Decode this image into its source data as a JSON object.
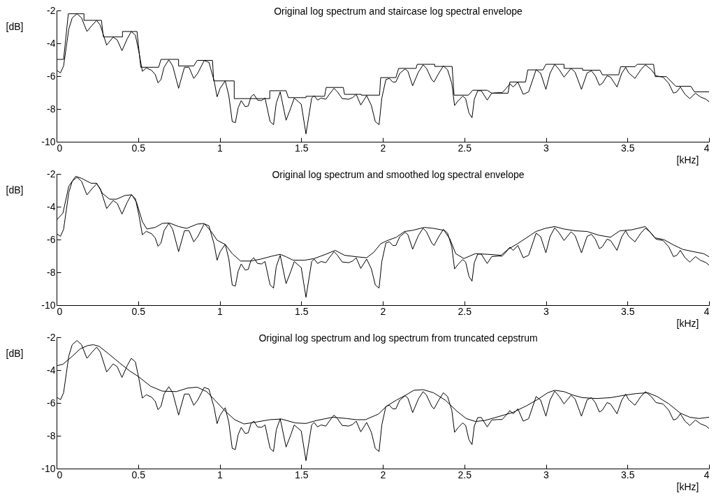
{
  "chart_data": [
    {
      "type": "line",
      "title": "Original log spectrum and staircase log spectral envelope",
      "xlabel": "[kHz]",
      "ylabel": "[dB]",
      "xlim": [
        0,
        4
      ],
      "xticks": [
        0,
        0.5,
        1,
        1.5,
        2,
        2.5,
        3,
        3.5,
        4
      ],
      "ylim": [
        -10,
        -2
      ],
      "yticks": [
        -10,
        -8,
        -6,
        -4,
        -2
      ],
      "series": [
        {
          "type": "line",
          "color": "#000000",
          "x": [
            0,
            0.024,
            0.043,
            0.075,
            0.096,
            0.125,
            0.153,
            0.186,
            0.218,
            0.246,
            0.268,
            0.307,
            0.347,
            0.372,
            0.401,
            0.433,
            0.458,
            0.483,
            0.504,
            0.526,
            0.55,
            0.583,
            0.605,
            0.622,
            0.64,
            0.659,
            0.688,
            0.712,
            0.748,
            0.784,
            0.812,
            0.841,
            0.865,
            0.905,
            0.934,
            0.966,
            0.984,
            1.003,
            1.034,
            1.056,
            1.077,
            1.096,
            1.113,
            1.132,
            1.156,
            1.175,
            1.192,
            1.209,
            1.232,
            1.256,
            1.278,
            1.309,
            1.33,
            1.347,
            1.371,
            1.407,
            1.436,
            1.457,
            1.5,
            1.529,
            1.564,
            1.579,
            1.6,
            1.622,
            1.651,
            1.672,
            1.701,
            1.722,
            1.751,
            1.791,
            1.815,
            1.837,
            1.865,
            1.901,
            1.93,
            1.954,
            1.977,
            1.994,
            2.019,
            2.04,
            2.061,
            2.08,
            2.104,
            2.137,
            2.154,
            2.183,
            2.218,
            2.247,
            2.268,
            2.3,
            2.314,
            2.343,
            2.371,
            2.397,
            2.423,
            2.44,
            2.461,
            2.49,
            2.508,
            2.528,
            2.547,
            2.561,
            2.582,
            2.604,
            2.64,
            2.668,
            2.704,
            2.732,
            2.757,
            2.779,
            2.8,
            2.828,
            2.861,
            2.894,
            2.94,
            2.968,
            3,
            3.025,
            3.054,
            3.082,
            3.111,
            3.154,
            3.179,
            3.218,
            3.253,
            3.279,
            3.303,
            3.328,
            3.346,
            3.375,
            3.396,
            3.436,
            3.465,
            3.489,
            3.507,
            3.546,
            3.582,
            3.61,
            3.646,
            3.675,
            3.718,
            3.753,
            3.782,
            3.803,
            3.824,
            3.853,
            3.882,
            3.917,
            3.946,
            3.982,
            4
          ],
          "values": [
            -5.65,
            -5.8,
            -5.38,
            -3.13,
            -2.45,
            -2.2,
            -2.45,
            -3.28,
            -2.9,
            -2.6,
            -2.9,
            -4.11,
            -3.62,
            -3.8,
            -4.45,
            -3.73,
            -3.28,
            -3.5,
            -4.48,
            -5.71,
            -5.5,
            -5.65,
            -5.91,
            -6.41,
            -6.21,
            -5.46,
            -5.01,
            -5.38,
            -6.74,
            -5.46,
            -5.46,
            -6.14,
            -5.83,
            -5.05,
            -5.16,
            -6.29,
            -7.26,
            -6.74,
            -6.29,
            -7.19,
            -8.77,
            -8.84,
            -7.94,
            -7.49,
            -7.86,
            -7.82,
            -7.26,
            -7.11,
            -7.46,
            -7.49,
            -7.34,
            -8.77,
            -8.96,
            -7.64,
            -6.96,
            -8.69,
            -7.94,
            -7.34,
            -7.71,
            -9.52,
            -7.34,
            -7.19,
            -7.46,
            -7.34,
            -7.41,
            -7.11,
            -6.74,
            -6.96,
            -7.37,
            -7.41,
            -7.31,
            -7.11,
            -7.76,
            -7.19,
            -7.79,
            -8.77,
            -8.96,
            -7.34,
            -6.21,
            -6.14,
            -6.36,
            -6.36,
            -5.83,
            -5.56,
            -5.71,
            -6.59,
            -5.76,
            -5.31,
            -5.53,
            -6.21,
            -6.36,
            -5.83,
            -5.38,
            -5.61,
            -6.44,
            -7.79,
            -7.52,
            -7.22,
            -7.37,
            -8.24,
            -8.54,
            -7.41,
            -6.89,
            -6.89,
            -7.46,
            -7.04,
            -7.01,
            -7.01,
            -6.74,
            -6.47,
            -6.66,
            -6.36,
            -7.11,
            -6.96,
            -5.61,
            -5.83,
            -6.81,
            -5.83,
            -5.28,
            -5.61,
            -6.06,
            -5.53,
            -5.76,
            -6.81,
            -5.8,
            -5.68,
            -5.98,
            -6.56,
            -6.44,
            -5.98,
            -6.06,
            -6.66,
            -5.83,
            -5.46,
            -5.8,
            -6.14,
            -5.61,
            -5.31,
            -5.61,
            -5.98,
            -6.06,
            -6.44,
            -7.04,
            -6.96,
            -6.66,
            -7.11,
            -7.37,
            -7.04,
            -7.26,
            -7.41,
            -7.56
          ]
        },
        {
          "type": "line",
          "color": "#000000",
          "x": [
            0,
            0.043,
            0.072,
            0.168,
            0.168,
            0.275,
            0.287,
            0.404,
            0.404,
            0.493,
            0.516,
            0.626,
            0.64,
            0.748,
            0.748,
            0.841,
            0.862,
            0.956,
            0.963,
            1.089,
            1.089,
            1.307,
            1.307,
            1.407,
            1.421,
            1.529,
            1.529,
            1.643,
            1.653,
            1.758,
            1.765,
            1.868,
            1.868,
            1.98,
            1.987,
            2.08,
            2.097,
            2.204,
            2.211,
            2.318,
            2.318,
            2.425,
            2.437,
            2.525,
            2.551,
            2.64,
            2.668,
            2.768,
            2.779,
            2.875,
            2.889,
            2.982,
            3,
            3.111,
            3.111,
            3.225,
            3.225,
            3.332,
            3.346,
            3.446,
            3.458,
            3.546,
            3.56,
            3.66,
            3.67,
            3.739,
            3.796,
            3.889,
            3.91,
            4
          ],
          "values": [
            -4.98,
            -4.98,
            -2.2,
            -2.2,
            -2.6,
            -2.6,
            -3.61,
            -3.61,
            -3.28,
            -3.28,
            -5.46,
            -5.46,
            -4.98,
            -4.98,
            -5.38,
            -5.38,
            -5.04,
            -5.04,
            -6.29,
            -6.29,
            -7.37,
            -7.37,
            -6.89,
            -6.89,
            -7.31,
            -7.31,
            -7.23,
            -7.23,
            -6.69,
            -6.69,
            -7.11,
            -7.11,
            -7.16,
            -7.16,
            -6.09,
            -6.09,
            -5.53,
            -5.53,
            -5.28,
            -5.28,
            -5.41,
            -5.41,
            -7.16,
            -7.16,
            -6.86,
            -6.86,
            -7.04,
            -7.04,
            -6.36,
            -6.36,
            -5.62,
            -5.62,
            -5.28,
            -5.28,
            -5.53,
            -5.53,
            -5.64,
            -5.64,
            -5.92,
            -5.92,
            -5.43,
            -5.43,
            -5.28,
            -5.28,
            -6.03,
            -6.03,
            -6.62,
            -6.62,
            -6.96,
            -6.96
          ]
        }
      ]
    },
    {
      "type": "line",
      "title": "Original log spectrum and smoothed log spectral envelope",
      "xlabel": "[kHz]",
      "ylabel": "[dB]",
      "xlim": [
        0,
        4
      ],
      "xticks": [
        0,
        0.5,
        1,
        1.5,
        2,
        2.5,
        3,
        3.5,
        4
      ],
      "ylim": [
        -10,
        -2
      ],
      "yticks": [
        -10,
        -8,
        -6,
        -4,
        -2
      ],
      "series": [
        {
          "type": "line",
          "color": "#000000",
          "x": [
            0,
            0.024,
            0.043,
            0.075,
            0.096,
            0.125,
            0.153,
            0.186,
            0.218,
            0.246,
            0.268,
            0.307,
            0.347,
            0.372,
            0.401,
            0.433,
            0.458,
            0.483,
            0.504,
            0.526,
            0.55,
            0.583,
            0.605,
            0.622,
            0.64,
            0.659,
            0.688,
            0.712,
            0.748,
            0.784,
            0.812,
            0.841,
            0.865,
            0.905,
            0.934,
            0.966,
            0.984,
            1.003,
            1.034,
            1.056,
            1.077,
            1.096,
            1.113,
            1.132,
            1.156,
            1.175,
            1.192,
            1.209,
            1.232,
            1.256,
            1.278,
            1.309,
            1.33,
            1.347,
            1.371,
            1.407,
            1.436,
            1.457,
            1.5,
            1.529,
            1.564,
            1.579,
            1.6,
            1.622,
            1.651,
            1.672,
            1.701,
            1.722,
            1.751,
            1.791,
            1.815,
            1.837,
            1.865,
            1.901,
            1.93,
            1.954,
            1.977,
            1.994,
            2.019,
            2.04,
            2.061,
            2.08,
            2.104,
            2.137,
            2.154,
            2.183,
            2.218,
            2.247,
            2.268,
            2.3,
            2.314,
            2.343,
            2.371,
            2.397,
            2.423,
            2.44,
            2.461,
            2.49,
            2.508,
            2.528,
            2.547,
            2.561,
            2.582,
            2.604,
            2.64,
            2.668,
            2.704,
            2.732,
            2.757,
            2.779,
            2.8,
            2.828,
            2.861,
            2.894,
            2.94,
            2.968,
            3,
            3.025,
            3.054,
            3.082,
            3.111,
            3.154,
            3.179,
            3.218,
            3.253,
            3.279,
            3.303,
            3.328,
            3.346,
            3.375,
            3.396,
            3.436,
            3.465,
            3.489,
            3.507,
            3.546,
            3.582,
            3.61,
            3.646,
            3.675,
            3.718,
            3.753,
            3.782,
            3.803,
            3.824,
            3.853,
            3.882,
            3.917,
            3.946,
            3.982,
            4
          ],
          "values": [
            -5.65,
            -5.8,
            -5.38,
            -3.13,
            -2.45,
            -2.2,
            -2.45,
            -3.28,
            -2.9,
            -2.6,
            -2.9,
            -4.11,
            -3.62,
            -3.8,
            -4.45,
            -3.73,
            -3.28,
            -3.5,
            -4.48,
            -5.71,
            -5.5,
            -5.65,
            -5.91,
            -6.41,
            -6.21,
            -5.46,
            -5.01,
            -5.38,
            -6.74,
            -5.46,
            -5.46,
            -6.14,
            -5.83,
            -5.05,
            -5.16,
            -6.29,
            -7.26,
            -6.74,
            -6.29,
            -7.19,
            -8.77,
            -8.84,
            -7.94,
            -7.49,
            -7.86,
            -7.82,
            -7.26,
            -7.11,
            -7.46,
            -7.49,
            -7.34,
            -8.77,
            -8.96,
            -7.64,
            -6.96,
            -8.69,
            -7.94,
            -7.34,
            -7.71,
            -9.52,
            -7.34,
            -7.19,
            -7.46,
            -7.34,
            -7.41,
            -7.11,
            -6.74,
            -6.96,
            -7.37,
            -7.41,
            -7.31,
            -7.11,
            -7.76,
            -7.19,
            -7.79,
            -8.77,
            -8.96,
            -7.34,
            -6.21,
            -6.14,
            -6.36,
            -6.36,
            -5.83,
            -5.56,
            -5.71,
            -6.59,
            -5.76,
            -5.31,
            -5.53,
            -6.21,
            -6.36,
            -5.83,
            -5.38,
            -5.61,
            -6.44,
            -7.79,
            -7.52,
            -7.22,
            -7.37,
            -8.24,
            -8.54,
            -7.41,
            -6.89,
            -6.89,
            -7.46,
            -7.04,
            -7.01,
            -7.01,
            -6.74,
            -6.47,
            -6.66,
            -6.36,
            -7.11,
            -6.96,
            -5.61,
            -5.83,
            -6.81,
            -5.83,
            -5.28,
            -5.61,
            -6.06,
            -5.53,
            -5.76,
            -6.81,
            -5.8,
            -5.68,
            -5.98,
            -6.56,
            -6.44,
            -5.98,
            -6.06,
            -6.66,
            -5.83,
            -5.46,
            -5.8,
            -6.14,
            -5.61,
            -5.31,
            -5.61,
            -5.98,
            -6.06,
            -6.44,
            -7.04,
            -6.96,
            -6.66,
            -7.11,
            -7.37,
            -7.04,
            -7.26,
            -7.41,
            -7.56
          ]
        },
        {
          "type": "line",
          "color": "#000000",
          "x": [
            0,
            0.039,
            0.075,
            0.117,
            0.153,
            0.211,
            0.246,
            0.282,
            0.325,
            0.368,
            0.418,
            0.461,
            0.49,
            0.526,
            0.554,
            0.605,
            0.648,
            0.691,
            0.748,
            0.798,
            0.862,
            0.905,
            0.948,
            0.984,
            1.034,
            1.077,
            1.128,
            1.192,
            1.249,
            1.321,
            1.371,
            1.407,
            1.45,
            1.521,
            1.579,
            1.65,
            1.708,
            1.765,
            1.837,
            1.901,
            1.944,
            1.987,
            2.026,
            2.083,
            2.133,
            2.183,
            2.254,
            2.311,
            2.375,
            2.411,
            2.447,
            2.497,
            2.568,
            2.64,
            2.725,
            2.768,
            2.825,
            2.882,
            2.939,
            2.996,
            3.054,
            3.111,
            3.182,
            3.253,
            3.325,
            3.396,
            3.453,
            3.525,
            3.61,
            3.667,
            3.724,
            3.782,
            3.839,
            3.91,
            3.967,
            4
          ],
          "values": [
            -4.81,
            -4.39,
            -2.75,
            -2.15,
            -2.27,
            -2.57,
            -2.57,
            -3.2,
            -3.54,
            -3.54,
            -3.32,
            -3.27,
            -3.72,
            -4.91,
            -5.36,
            -5.26,
            -5.02,
            -4.99,
            -5.21,
            -5.32,
            -5.06,
            -5.02,
            -5.51,
            -6.04,
            -6.3,
            -6.86,
            -7.31,
            -7.31,
            -7.2,
            -7.01,
            -6.9,
            -7.05,
            -7.26,
            -7.26,
            -7.16,
            -6.9,
            -6.66,
            -6.96,
            -7.05,
            -7.11,
            -6.78,
            -6.26,
            -6.07,
            -5.86,
            -5.51,
            -5.44,
            -5.26,
            -5.32,
            -5.44,
            -5.96,
            -6.86,
            -7.16,
            -6.86,
            -6.9,
            -6.96,
            -6.6,
            -6.26,
            -5.89,
            -5.51,
            -5.32,
            -5.21,
            -5.36,
            -5.47,
            -5.51,
            -5.74,
            -5.86,
            -5.47,
            -5.41,
            -5.21,
            -5.89,
            -6.01,
            -6.33,
            -6.6,
            -6.75,
            -6.86,
            -7.05
          ]
        }
      ]
    },
    {
      "type": "line",
      "title": "Original log spectrum and log spectrum from truncated cepstrum",
      "xlabel": "[kHz]",
      "ylabel": "[dB]",
      "xlim": [
        0,
        4
      ],
      "xticks": [
        0,
        0.5,
        1,
        1.5,
        2,
        2.5,
        3,
        3.5,
        4
      ],
      "ylim": [
        -10,
        -2
      ],
      "yticks": [
        -10,
        -8,
        -6,
        -4,
        -2
      ],
      "series": [
        {
          "type": "line",
          "color": "#000000",
          "x": [
            0,
            0.024,
            0.043,
            0.075,
            0.096,
            0.125,
            0.153,
            0.186,
            0.218,
            0.246,
            0.268,
            0.307,
            0.347,
            0.372,
            0.401,
            0.433,
            0.458,
            0.483,
            0.504,
            0.526,
            0.55,
            0.583,
            0.605,
            0.622,
            0.64,
            0.659,
            0.688,
            0.712,
            0.748,
            0.784,
            0.812,
            0.841,
            0.865,
            0.905,
            0.934,
            0.966,
            0.984,
            1.003,
            1.034,
            1.056,
            1.077,
            1.096,
            1.113,
            1.132,
            1.156,
            1.175,
            1.192,
            1.209,
            1.232,
            1.256,
            1.278,
            1.309,
            1.33,
            1.347,
            1.371,
            1.407,
            1.436,
            1.457,
            1.5,
            1.529,
            1.564,
            1.579,
            1.6,
            1.622,
            1.651,
            1.672,
            1.701,
            1.722,
            1.751,
            1.791,
            1.815,
            1.837,
            1.865,
            1.901,
            1.93,
            1.954,
            1.977,
            1.994,
            2.019,
            2.04,
            2.061,
            2.08,
            2.104,
            2.137,
            2.154,
            2.183,
            2.218,
            2.247,
            2.268,
            2.3,
            2.314,
            2.343,
            2.371,
            2.397,
            2.423,
            2.44,
            2.461,
            2.49,
            2.508,
            2.528,
            2.547,
            2.561,
            2.582,
            2.604,
            2.64,
            2.668,
            2.704,
            2.732,
            2.757,
            2.779,
            2.8,
            2.828,
            2.861,
            2.894,
            2.94,
            2.968,
            3,
            3.025,
            3.054,
            3.082,
            3.111,
            3.154,
            3.179,
            3.218,
            3.253,
            3.279,
            3.303,
            3.328,
            3.346,
            3.375,
            3.396,
            3.436,
            3.465,
            3.489,
            3.507,
            3.546,
            3.582,
            3.61,
            3.646,
            3.675,
            3.718,
            3.753,
            3.782,
            3.803,
            3.824,
            3.853,
            3.882,
            3.917,
            3.946,
            3.982,
            4
          ],
          "values": [
            -5.65,
            -5.8,
            -5.38,
            -3.13,
            -2.45,
            -2.2,
            -2.45,
            -3.28,
            -2.9,
            -2.6,
            -2.9,
            -4.11,
            -3.62,
            -3.8,
            -4.45,
            -3.73,
            -3.28,
            -3.5,
            -4.48,
            -5.71,
            -5.5,
            -5.65,
            -5.91,
            -6.41,
            -6.21,
            -5.46,
            -5.01,
            -5.38,
            -6.74,
            -5.46,
            -5.46,
            -6.14,
            -5.83,
            -5.05,
            -5.16,
            -6.29,
            -7.26,
            -6.74,
            -6.29,
            -7.19,
            -8.77,
            -8.84,
            -7.94,
            -7.49,
            -7.86,
            -7.82,
            -7.26,
            -7.11,
            -7.46,
            -7.49,
            -7.34,
            -8.77,
            -8.96,
            -7.64,
            -6.96,
            -8.69,
            -7.94,
            -7.34,
            -7.71,
            -9.52,
            -7.34,
            -7.19,
            -7.46,
            -7.34,
            -7.41,
            -7.11,
            -6.74,
            -6.96,
            -7.37,
            -7.41,
            -7.31,
            -7.11,
            -7.76,
            -7.19,
            -7.79,
            -8.77,
            -8.96,
            -7.34,
            -6.21,
            -6.14,
            -6.36,
            -6.36,
            -5.83,
            -5.56,
            -5.71,
            -6.59,
            -5.76,
            -5.31,
            -5.53,
            -6.21,
            -6.36,
            -5.83,
            -5.38,
            -5.61,
            -6.44,
            -7.79,
            -7.52,
            -7.22,
            -7.37,
            -8.24,
            -8.54,
            -7.41,
            -6.89,
            -6.89,
            -7.46,
            -7.04,
            -7.01,
            -7.01,
            -6.74,
            -6.47,
            -6.66,
            -6.36,
            -7.11,
            -6.96,
            -5.61,
            -5.83,
            -6.81,
            -5.83,
            -5.28,
            -5.61,
            -6.06,
            -5.53,
            -5.76,
            -6.81,
            -5.8,
            -5.68,
            -5.98,
            -6.56,
            -6.44,
            -5.98,
            -6.06,
            -6.66,
            -5.83,
            -5.46,
            -5.8,
            -6.14,
            -5.61,
            -5.31,
            -5.61,
            -5.98,
            -6.06,
            -6.44,
            -7.04,
            -6.96,
            -6.66,
            -7.11,
            -7.37,
            -7.04,
            -7.26,
            -7.41,
            -7.56
          ]
        },
        {
          "type": "line",
          "color": "#000000",
          "x": [
            0,
            0.039,
            0.089,
            0.146,
            0.189,
            0.225,
            0.261,
            0.318,
            0.39,
            0.447,
            0.504,
            0.576,
            0.648,
            0.734,
            0.805,
            0.862,
            0.92,
            0.977,
            1.034,
            1.092,
            1.149,
            1.221,
            1.307,
            1.378,
            1.464,
            1.529,
            1.593,
            1.693,
            1.779,
            1.837,
            1.894,
            1.973,
            2.023,
            2.083,
            2.14,
            2.19,
            2.247,
            2.311,
            2.383,
            2.454,
            2.511,
            2.568,
            2.625,
            2.711,
            2.797,
            2.882,
            2.954,
            3.011,
            3.054,
            3.111,
            3.168,
            3.225,
            3.311,
            3.396,
            3.482,
            3.553,
            3.625,
            3.682,
            3.753,
            3.824,
            3.882,
            3.939,
            4
          ],
          "values": [
            -3.74,
            -3.64,
            -3.22,
            -2.7,
            -2.51,
            -2.45,
            -2.55,
            -3,
            -3.59,
            -4.04,
            -4.41,
            -4.98,
            -5.28,
            -5.31,
            -5.09,
            -5.04,
            -5.31,
            -5.9,
            -6.5,
            -7.02,
            -7.28,
            -7.17,
            -7.02,
            -6.98,
            -7.22,
            -7.25,
            -7.07,
            -6.87,
            -6.95,
            -7.02,
            -7.02,
            -6.68,
            -6.2,
            -5.83,
            -5.53,
            -5.23,
            -5.19,
            -5.38,
            -5.83,
            -6.5,
            -6.95,
            -7.13,
            -7.07,
            -6.83,
            -6.58,
            -6.17,
            -5.76,
            -5.38,
            -5.23,
            -5.31,
            -5.53,
            -5.68,
            -5.73,
            -5.68,
            -5.53,
            -5.43,
            -5.38,
            -5.61,
            -6.05,
            -6.62,
            -6.87,
            -6.95,
            -6.87
          ]
        }
      ]
    }
  ]
}
